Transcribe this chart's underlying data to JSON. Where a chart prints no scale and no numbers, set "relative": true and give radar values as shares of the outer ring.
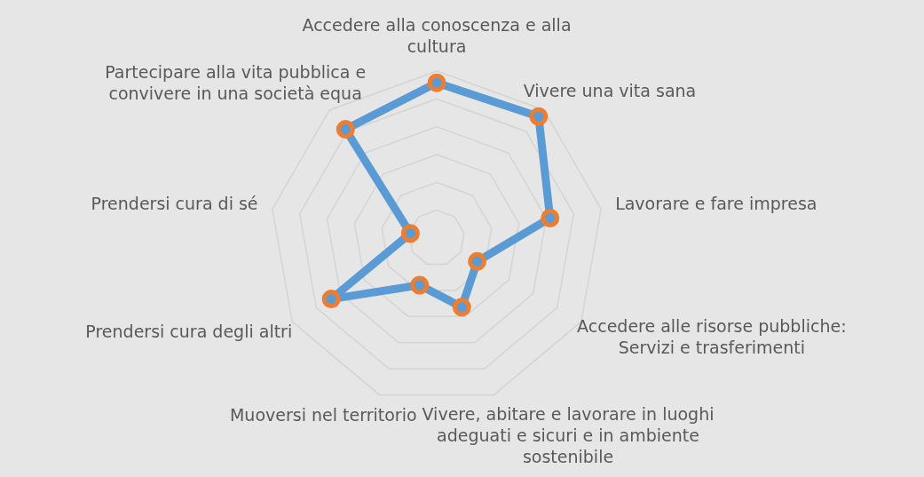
{
  "chart_data": {
    "type": "radar",
    "relative": true,
    "categories": [
      "Accedere alla conoscenza e alla cultura",
      "Vivere una vita sana",
      "Lavorare e fare impresa",
      "Accedere alle risorse pubbliche: Servizi e trasferimenti",
      "Vivere, abitare e lavorare in luoghi adeguati e sicuri e in ambiente sostenibile",
      "Muoversi nel territorio",
      "Prendersi cura degli altri",
      "Prendersi cura di sé",
      "Partecipare alla vita pubblica e convivere in una società equa"
    ],
    "series": [
      {
        "color": "#5b9bd5",
        "values": [
          0.93,
          0.95,
          0.69,
          0.28,
          0.44,
          0.3,
          0.73,
          0.16,
          0.85
        ]
      }
    ],
    "marker": "circle",
    "legend": false
  }
}
